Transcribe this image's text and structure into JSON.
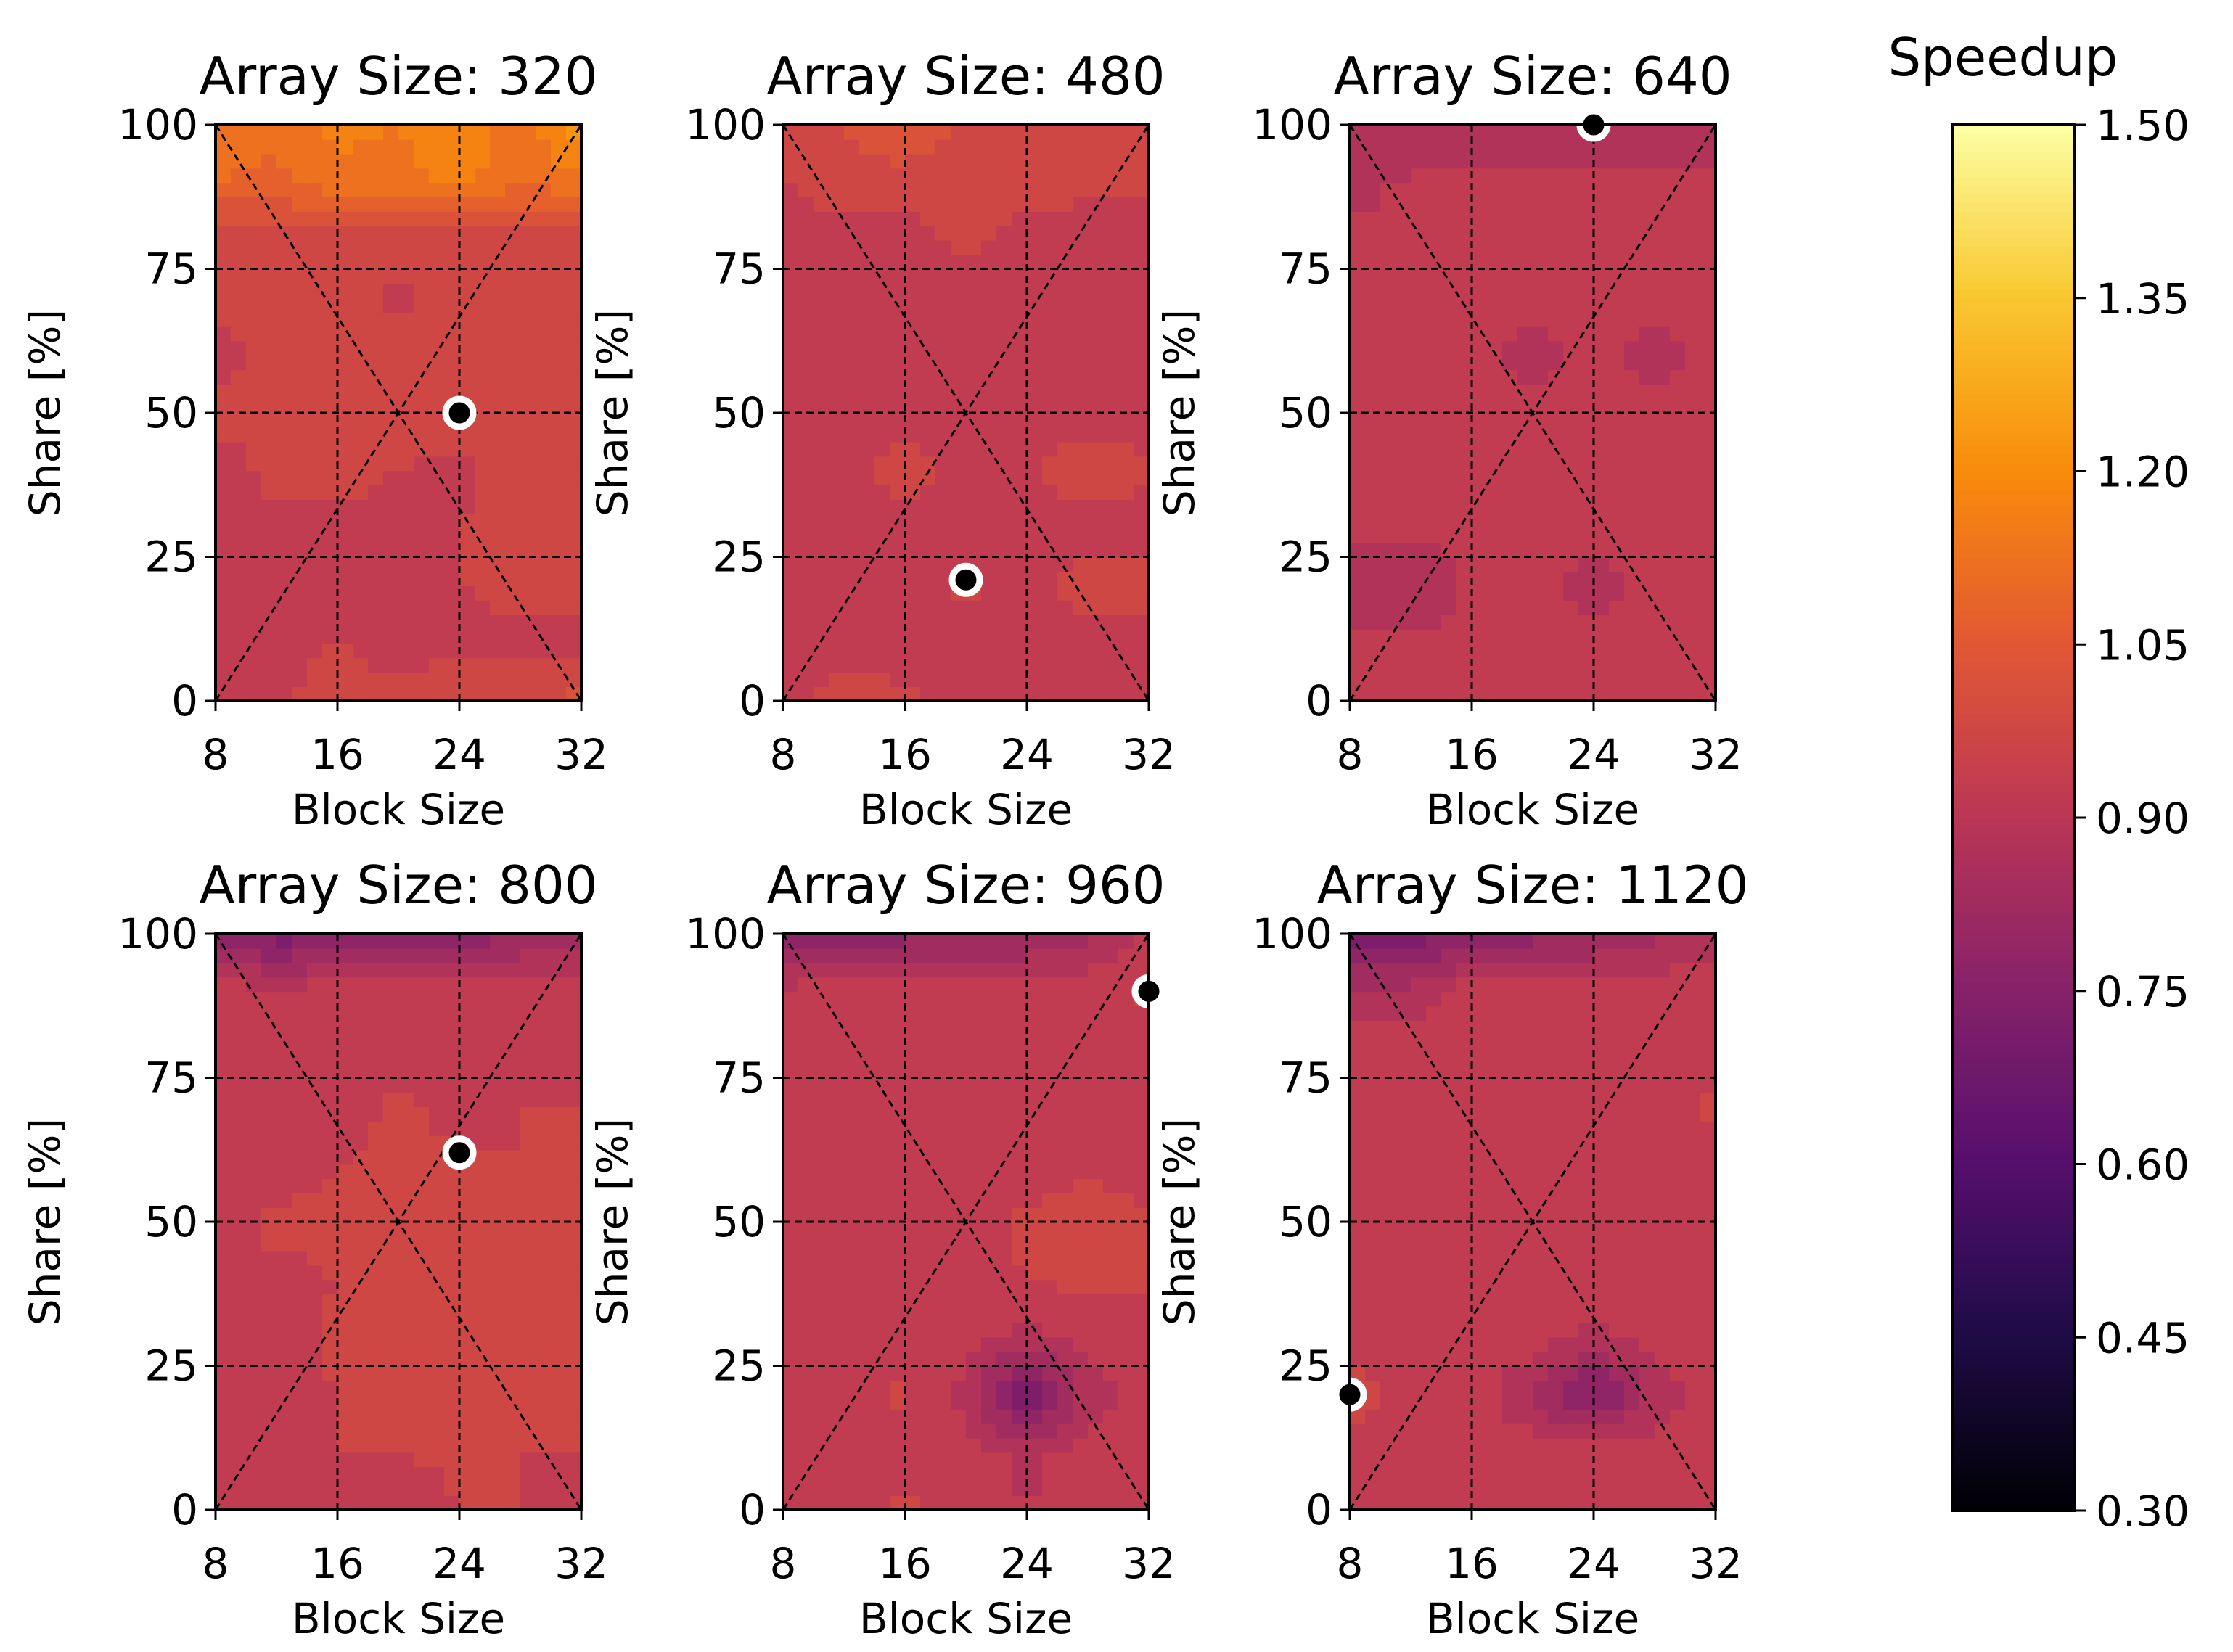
{
  "chart_data": {
    "type": "contour",
    "colorbar": {
      "title": "Speedup",
      "colormap": "inferno",
      "vmin": 0.3,
      "vmax": 1.5,
      "ticks": [
        "0.30",
        "0.45",
        "0.60",
        "0.75",
        "0.90",
        "1.05",
        "1.20",
        "1.35",
        "1.50"
      ]
    },
    "subplots": [
      {
        "title": "Array Size: 320",
        "xlabel": "Block Size",
        "ylabel": "Share [%]",
        "xticks": [
          "8",
          "16",
          "24",
          "32"
        ],
        "yticks": [
          "0",
          "25",
          "50",
          "75",
          "100"
        ],
        "xlim": [
          8,
          32
        ],
        "ylim": [
          0,
          100
        ],
        "grid": [
          [
            0.92,
            0.94,
            0.98,
            0.96,
            0.99,
            1.0,
            1.01
          ],
          [
            0.92,
            0.93,
            0.95,
            0.93,
            0.94,
            0.94,
            0.94
          ],
          [
            0.94,
            0.95,
            0.94,
            0.93,
            0.95,
            0.96,
            0.96
          ],
          [
            0.94,
            0.94,
            0.94,
            0.94,
            0.95,
            0.97,
            0.97
          ],
          [
            0.93,
            0.96,
            0.96,
            0.95,
            0.94,
            0.97,
            0.97
          ],
          [
            0.96,
            0.97,
            0.97,
            0.97,
            0.97,
            0.97,
            0.97
          ],
          [
            0.93,
            0.97,
            0.97,
            0.97,
            0.97,
            0.97,
            0.97
          ],
          [
            0.97,
            0.97,
            0.96,
            0.94,
            0.96,
            0.97,
            0.97
          ],
          [
            0.97,
            0.97,
            0.97,
            0.97,
            0.97,
            0.97,
            0.97
          ],
          [
            1.1,
            1.08,
            1.14,
            1.12,
            1.17,
            1.1,
            1.13
          ],
          [
            1.14,
            1.12,
            1.16,
            1.15,
            1.2,
            1.12,
            1.26
          ]
        ],
        "best_point": {
          "x": 24,
          "y": 50
        }
      },
      {
        "title": "Array Size: 480",
        "xlabel": "Block Size",
        "ylabel": "Share [%]",
        "xticks": [
          "8",
          "16",
          "24",
          "32"
        ],
        "yticks": [
          "0",
          "25",
          "50",
          "75",
          "100"
        ],
        "xlim": [
          8,
          32
        ],
        "ylim": [
          0,
          100
        ],
        "grid": [
          [
            0.93,
            0.97,
            0.96,
            0.94,
            0.93,
            0.93,
            0.95
          ],
          [
            0.93,
            0.93,
            0.93,
            0.93,
            0.95,
            0.93,
            0.93
          ],
          [
            0.93,
            0.93,
            0.93,
            0.96,
            0.93,
            0.97,
            0.97
          ],
          [
            0.93,
            0.93,
            0.93,
            0.93,
            0.93,
            0.93,
            0.93
          ],
          [
            0.93,
            0.93,
            0.97,
            0.93,
            0.95,
            0.97,
            0.96
          ],
          [
            0.93,
            0.93,
            0.93,
            0.93,
            0.93,
            0.93,
            0.93
          ],
          [
            0.93,
            0.93,
            0.93,
            0.93,
            0.93,
            0.93,
            0.93
          ],
          [
            0.93,
            0.93,
            0.95,
            0.93,
            0.93,
            0.93,
            0.93
          ],
          [
            0.93,
            0.93,
            0.93,
            0.96,
            0.93,
            0.93,
            0.93
          ],
          [
            0.95,
            0.97,
            0.97,
            0.96,
            0.97,
            0.96,
            0.96
          ],
          [
            0.98,
            1.0,
            1.06,
            0.98,
            0.98,
            0.97,
            0.97
          ]
        ],
        "best_point": {
          "x": 20,
          "y": 21
        }
      },
      {
        "title": "Array Size: 640",
        "xlabel": "Block Size",
        "ylabel": "Share [%]",
        "xticks": [
          "8",
          "16",
          "24",
          "32"
        ],
        "yticks": [
          "0",
          "25",
          "50",
          "75",
          "100"
        ],
        "xlim": [
          8,
          32
        ],
        "ylim": [
          0,
          100
        ],
        "grid": [
          [
            0.91,
            0.91,
            0.91,
            0.91,
            0.91,
            0.91,
            0.91
          ],
          [
            0.91,
            0.91,
            0.91,
            0.91,
            0.91,
            0.91,
            0.91
          ],
          [
            0.88,
            0.85,
            0.91,
            0.91,
            0.89,
            0.91,
            0.91
          ],
          [
            0.91,
            0.91,
            0.91,
            0.91,
            0.91,
            0.91,
            0.91
          ],
          [
            0.91,
            0.91,
            0.91,
            0.91,
            0.91,
            0.91,
            0.91
          ],
          [
            0.91,
            0.91,
            0.91,
            0.91,
            0.91,
            0.91,
            0.91
          ],
          [
            0.91,
            0.91,
            0.91,
            0.89,
            0.91,
            0.89,
            0.91
          ],
          [
            0.91,
            0.91,
            0.91,
            0.91,
            0.91,
            0.91,
            0.91
          ],
          [
            0.91,
            0.91,
            0.91,
            0.91,
            0.91,
            0.91,
            0.91
          ],
          [
            0.88,
            0.91,
            0.91,
            0.91,
            0.91,
            0.91,
            0.91
          ],
          [
            0.86,
            0.85,
            0.87,
            0.85,
            0.87,
            0.87,
            0.88
          ]
        ],
        "best_point": {
          "x": 24,
          "y": 100
        }
      },
      {
        "title": "Array Size: 800",
        "xlabel": "Block Size",
        "ylabel": "Share [%]",
        "xticks": [
          "8",
          "16",
          "24",
          "32"
        ],
        "yticks": [
          "0",
          "25",
          "50",
          "75",
          "100"
        ],
        "xlim": [
          8,
          32
        ],
        "ylim": [
          0,
          100
        ],
        "grid": [
          [
            0.92,
            0.94,
            0.93,
            0.92,
            0.95,
            0.95,
            0.94
          ],
          [
            0.92,
            0.93,
            0.95,
            0.95,
            0.96,
            0.95,
            0.95
          ],
          [
            0.94,
            0.93,
            0.95,
            0.95,
            0.96,
            0.95,
            0.95
          ],
          [
            0.93,
            0.93,
            0.96,
            0.95,
            0.95,
            0.95,
            0.95
          ],
          [
            0.94,
            0.94,
            0.95,
            0.96,
            0.95,
            0.95,
            0.95
          ],
          [
            0.93,
            0.96,
            0.96,
            0.96,
            0.95,
            0.96,
            0.95
          ],
          [
            0.93,
            0.93,
            0.95,
            0.96,
            0.96,
            0.95,
            0.95
          ],
          [
            0.93,
            0.93,
            0.93,
            0.96,
            0.93,
            0.95,
            0.95
          ],
          [
            0.93,
            0.93,
            0.93,
            0.93,
            0.93,
            0.93,
            0.93
          ],
          [
            0.93,
            0.91,
            0.93,
            0.92,
            0.93,
            0.93,
            0.93
          ],
          [
            0.78,
            0.72,
            0.76,
            0.78,
            0.76,
            0.8,
            0.84
          ]
        ],
        "best_point": {
          "x": 24,
          "y": 62
        }
      },
      {
        "title": "Array Size: 960",
        "xlabel": "Block Size",
        "ylabel": "Share [%]",
        "xticks": [
          "8",
          "16",
          "24",
          "32"
        ],
        "yticks": [
          "0",
          "25",
          "50",
          "75",
          "100"
        ],
        "xlim": [
          8,
          32
        ],
        "ylim": [
          0,
          100
        ],
        "grid": [
          [
            0.93,
            0.93,
            0.96,
            0.93,
            0.9,
            0.93,
            0.93
          ],
          [
            0.93,
            0.93,
            0.93,
            0.93,
            0.88,
            0.93,
            0.93
          ],
          [
            0.93,
            0.93,
            0.96,
            0.88,
            0.7,
            0.86,
            0.93
          ],
          [
            0.93,
            0.93,
            0.93,
            0.93,
            0.88,
            0.93,
            0.93
          ],
          [
            0.93,
            0.93,
            0.93,
            0.93,
            0.95,
            0.96,
            0.96
          ],
          [
            0.93,
            0.93,
            0.93,
            0.93,
            0.96,
            0.96,
            0.96
          ],
          [
            0.93,
            0.93,
            0.93,
            0.93,
            0.93,
            0.95,
            0.93
          ],
          [
            0.93,
            0.93,
            0.92,
            0.93,
            0.93,
            0.93,
            0.93
          ],
          [
            0.93,
            0.93,
            0.93,
            0.93,
            0.93,
            0.93,
            0.93
          ],
          [
            0.92,
            0.93,
            0.95,
            0.93,
            0.93,
            0.93,
            0.96
          ],
          [
            0.73,
            0.76,
            0.78,
            0.8,
            0.8,
            0.84,
            0.9
          ]
        ],
        "best_point": {
          "x": 32,
          "y": 90
        }
      },
      {
        "title": "Array Size: 1120",
        "xlabel": "Block Size",
        "ylabel": "Share [%]",
        "xticks": [
          "8",
          "16",
          "24",
          "32"
        ],
        "yticks": [
          "0",
          "25",
          "50",
          "75",
          "100"
        ],
        "xlim": [
          8,
          32
        ],
        "ylim": [
          0,
          100
        ],
        "grid": [
          [
            0.93,
            0.93,
            0.93,
            0.93,
            0.93,
            0.93,
            0.93
          ],
          [
            0.93,
            0.93,
            0.93,
            0.93,
            0.93,
            0.93,
            0.93
          ],
          [
            0.97,
            0.93,
            0.93,
            0.85,
            0.72,
            0.86,
            0.93
          ],
          [
            0.93,
            0.93,
            0.93,
            0.93,
            0.88,
            0.93,
            0.93
          ],
          [
            0.93,
            0.93,
            0.93,
            0.93,
            0.93,
            0.93,
            0.93
          ],
          [
            0.93,
            0.93,
            0.93,
            0.93,
            0.93,
            0.93,
            0.93
          ],
          [
            0.93,
            0.93,
            0.93,
            0.93,
            0.93,
            0.93,
            0.93
          ],
          [
            0.93,
            0.93,
            0.93,
            0.93,
            0.93,
            0.93,
            0.96
          ],
          [
            0.93,
            0.93,
            0.93,
            0.93,
            0.93,
            0.93,
            0.93
          ],
          [
            0.86,
            0.87,
            0.93,
            0.93,
            0.93,
            0.93,
            0.93
          ],
          [
            0.7,
            0.72,
            0.76,
            0.78,
            0.8,
            0.84,
            0.88
          ]
        ],
        "best_point": {
          "x": 8,
          "y": 20
        }
      }
    ]
  }
}
